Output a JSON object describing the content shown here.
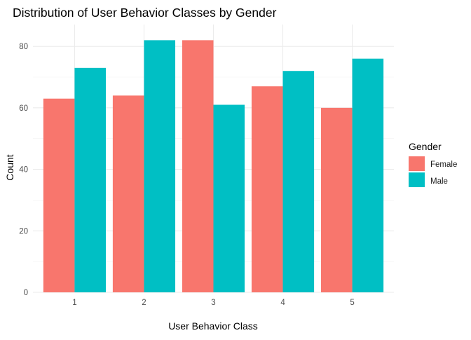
{
  "chart_data": {
    "type": "bar",
    "title": "Distribution of User Behavior Classes by Gender",
    "xlabel": "User Behavior Class",
    "ylabel": "Count",
    "categories": [
      "1",
      "2",
      "3",
      "4",
      "5"
    ],
    "series": [
      {
        "name": "Female",
        "color": "#F8766D",
        "values": [
          63,
          64,
          82,
          67,
          60
        ]
      },
      {
        "name": "Male",
        "color": "#00BFC4",
        "values": [
          73,
          82,
          61,
          72,
          76
        ]
      }
    ],
    "ylim": [
      0,
      87.1
    ],
    "yticks": [
      0,
      20,
      40,
      60,
      80
    ],
    "ytick_labels": [
      "0",
      "20",
      "40",
      "60",
      "80"
    ],
    "legend": {
      "title": "Gender",
      "placement": "right",
      "entries": [
        "Female",
        "Male"
      ]
    },
    "grid": true
  }
}
